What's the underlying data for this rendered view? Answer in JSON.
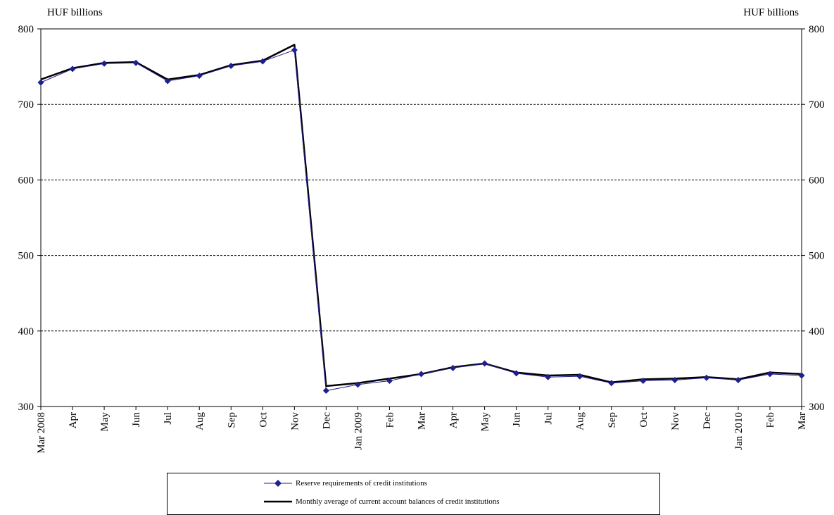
{
  "chart_data": {
    "type": "line",
    "y_unit_label_left": "HUF billions",
    "y_unit_label_right": "HUF billions",
    "categories": [
      "Mar 2008",
      "Apr",
      "May",
      "Jun",
      "Jul",
      "Aug",
      "Sep",
      "Oct",
      "Nov",
      "Dec",
      "Jan 2009",
      "Feb",
      "Mar",
      "Apr",
      "May",
      "Jun",
      "Jul",
      "Aug",
      "Sep",
      "Oct",
      "Nov",
      "Dec",
      "Jan 2010",
      "Feb",
      "Mar"
    ],
    "ylim": [
      300,
      800
    ],
    "yticks": [
      300,
      400,
      500,
      600,
      700,
      800
    ],
    "grid": "horizontal",
    "legend_position": "bottom",
    "series": [
      {
        "name": "Reserve requirements of credit institutions",
        "color": "#1f1f8f",
        "marker": "diamond",
        "values": [
          729,
          747,
          754,
          755,
          731,
          738,
          751,
          757,
          772,
          321,
          329,
          334,
          343,
          351,
          357,
          344,
          339,
          340,
          331,
          334,
          335,
          338,
          335,
          343,
          341
        ]
      },
      {
        "name": "Monthly average of current account balances of credit institutions",
        "color": "#000000",
        "marker": "none",
        "values": [
          733,
          748,
          755,
          756,
          733,
          739,
          752,
          758,
          779,
          327,
          331,
          337,
          343,
          352,
          357,
          345,
          341,
          342,
          332,
          336,
          337,
          339,
          336,
          345,
          343
        ]
      }
    ]
  }
}
